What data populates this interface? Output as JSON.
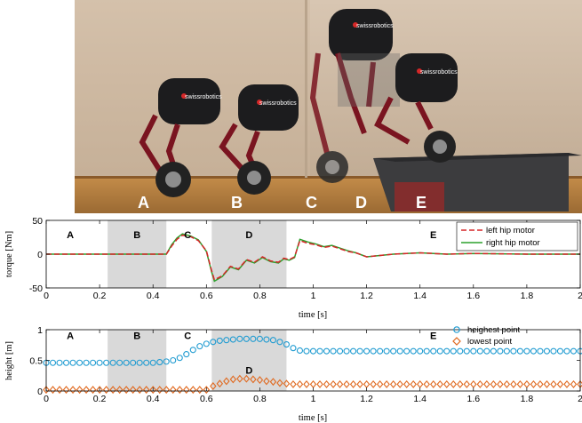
{
  "photo": {
    "phase_labels": [
      "A",
      "B",
      "C",
      "D",
      "E"
    ],
    "robot_logo": "swissrobotics",
    "colors": {
      "wall": "#c9b29a",
      "floor": "#b07a3c",
      "robot": "#1c1c1e",
      "frame": "#7a1420",
      "box": "#3a3a3a"
    }
  },
  "chart_data": [
    {
      "type": "line",
      "ylabel": "torque [Nm]",
      "xlabel": "time [s]",
      "xlim": [
        0,
        2
      ],
      "ylim": [
        -50,
        50
      ],
      "xticks": [
        0,
        0.2,
        0.4,
        0.6,
        0.8,
        1,
        1.2,
        1.4,
        1.6,
        1.8,
        2
      ],
      "yticks": [
        -50,
        0,
        50
      ],
      "phases": [
        {
          "label": "A",
          "x": 0.09
        },
        {
          "label": "B",
          "x": 0.34,
          "shade": [
            0.23,
            0.45
          ]
        },
        {
          "label": "C",
          "x": 0.53
        },
        {
          "label": "D",
          "x": 0.76,
          "shade": [
            0.62,
            0.9
          ]
        },
        {
          "label": "E",
          "x": 1.45
        }
      ],
      "legend": "top-right",
      "series": [
        {
          "name": "left hip motor",
          "color": "#d62728",
          "style": "dashed",
          "x": [
            0,
            0.45,
            0.47,
            0.49,
            0.51,
            0.54,
            0.57,
            0.6,
            0.62,
            0.63,
            0.66,
            0.69,
            0.72,
            0.75,
            0.78,
            0.81,
            0.84,
            0.87,
            0.89,
            0.91,
            0.93,
            0.95,
            0.98,
            1.01,
            1.04,
            1.07,
            1.1,
            1.13,
            1.16,
            1.2,
            1.25,
            1.3,
            1.4,
            1.5,
            1.6,
            1.8,
            2.0
          ],
          "y": [
            0,
            0,
            12,
            22,
            28,
            26,
            20,
            5,
            -25,
            -38,
            -32,
            -18,
            -22,
            -8,
            -12,
            -4,
            -10,
            -12,
            -6,
            -8,
            -4,
            20,
            16,
            14,
            10,
            12,
            8,
            4,
            2,
            -4,
            -2,
            0,
            2,
            0,
            1,
            0,
            0
          ]
        },
        {
          "name": "right hip motor",
          "color": "#2ca02c",
          "style": "solid",
          "x": [
            0,
            0.45,
            0.47,
            0.49,
            0.51,
            0.54,
            0.57,
            0.6,
            0.62,
            0.63,
            0.66,
            0.69,
            0.72,
            0.75,
            0.78,
            0.81,
            0.84,
            0.87,
            0.89,
            0.91,
            0.93,
            0.95,
            0.98,
            1.01,
            1.04,
            1.07,
            1.1,
            1.13,
            1.16,
            1.2,
            1.25,
            1.3,
            1.4,
            1.5,
            1.6,
            1.8,
            2.0
          ],
          "y": [
            0,
            0,
            14,
            24,
            30,
            27,
            21,
            4,
            -27,
            -40,
            -33,
            -19,
            -23,
            -9,
            -13,
            -5,
            -11,
            -13,
            -7,
            -9,
            -5,
            22,
            18,
            15,
            11,
            13,
            9,
            5,
            2,
            -4,
            -2,
            0,
            2,
            0,
            1,
            0,
            0
          ]
        }
      ]
    },
    {
      "type": "scatter",
      "ylabel": "height [m]",
      "xlabel": "time [s]",
      "xlim": [
        0,
        2
      ],
      "ylim": [
        0,
        1
      ],
      "xticks": [
        0,
        0.2,
        0.4,
        0.6,
        0.8,
        1,
        1.2,
        1.4,
        1.6,
        1.8,
        2
      ],
      "yticks": [
        0,
        0.5,
        1
      ],
      "phases": [
        {
          "label": "A",
          "x": 0.09,
          "y": 0.85
        },
        {
          "label": "B",
          "x": 0.34,
          "y": 0.85,
          "shade": [
            0.23,
            0.45
          ]
        },
        {
          "label": "C",
          "x": 0.53,
          "y": 0.85
        },
        {
          "label": "D",
          "x": 0.76,
          "y": 0.28,
          "shade": [
            0.62,
            0.9
          ]
        },
        {
          "label": "E",
          "x": 1.45,
          "y": 0.85
        }
      ],
      "legend": "top-right",
      "series": [
        {
          "name": "heighest point",
          "color": "#1f9bd1",
          "marker": "circle",
          "x": [
            0,
            0.025,
            0.05,
            0.075,
            0.1,
            0.125,
            0.15,
            0.175,
            0.2,
            0.225,
            0.25,
            0.275,
            0.3,
            0.325,
            0.35,
            0.375,
            0.4,
            0.425,
            0.45,
            0.475,
            0.5,
            0.525,
            0.55,
            0.575,
            0.6,
            0.625,
            0.65,
            0.675,
            0.7,
            0.725,
            0.75,
            0.775,
            0.8,
            0.825,
            0.85,
            0.875,
            0.9,
            0.925,
            0.95,
            0.975,
            1.0,
            1.025,
            1.05,
            1.075,
            1.1,
            1.125,
            1.15,
            1.175,
            1.2,
            1.225,
            1.25,
            1.275,
            1.3,
            1.325,
            1.35,
            1.375,
            1.4,
            1.425,
            1.45,
            1.475,
            1.5,
            1.525,
            1.55,
            1.575,
            1.6,
            1.625,
            1.65,
            1.675,
            1.7,
            1.725,
            1.75,
            1.775,
            1.8,
            1.825,
            1.85,
            1.875,
            1.9,
            1.925,
            1.95,
            1.975,
            2.0
          ],
          "y": [
            0.46,
            0.46,
            0.46,
            0.46,
            0.46,
            0.46,
            0.46,
            0.46,
            0.46,
            0.46,
            0.46,
            0.46,
            0.46,
            0.46,
            0.46,
            0.46,
            0.46,
            0.47,
            0.48,
            0.5,
            0.54,
            0.6,
            0.67,
            0.73,
            0.77,
            0.8,
            0.82,
            0.83,
            0.84,
            0.85,
            0.85,
            0.85,
            0.85,
            0.84,
            0.83,
            0.8,
            0.76,
            0.7,
            0.66,
            0.65,
            0.65,
            0.65,
            0.65,
            0.65,
            0.65,
            0.65,
            0.65,
            0.65,
            0.65,
            0.65,
            0.65,
            0.65,
            0.65,
            0.65,
            0.65,
            0.65,
            0.65,
            0.65,
            0.65,
            0.65,
            0.65,
            0.65,
            0.65,
            0.65,
            0.65,
            0.65,
            0.65,
            0.65,
            0.65,
            0.65,
            0.65,
            0.65,
            0.65,
            0.65,
            0.65,
            0.65,
            0.65,
            0.65,
            0.65,
            0.65,
            0.65
          ]
        },
        {
          "name": "lowest point",
          "color": "#e0691f",
          "marker": "diamond",
          "x": [
            0,
            0.025,
            0.05,
            0.075,
            0.1,
            0.125,
            0.15,
            0.175,
            0.2,
            0.225,
            0.25,
            0.275,
            0.3,
            0.325,
            0.35,
            0.375,
            0.4,
            0.425,
            0.45,
            0.475,
            0.5,
            0.525,
            0.55,
            0.575,
            0.6,
            0.625,
            0.65,
            0.675,
            0.7,
            0.725,
            0.75,
            0.775,
            0.8,
            0.825,
            0.85,
            0.875,
            0.9,
            0.925,
            0.95,
            0.975,
            1.0,
            1.025,
            1.05,
            1.075,
            1.1,
            1.125,
            1.15,
            1.175,
            1.2,
            1.225,
            1.25,
            1.275,
            1.3,
            1.325,
            1.35,
            1.375,
            1.4,
            1.425,
            1.45,
            1.475,
            1.5,
            1.525,
            1.55,
            1.575,
            1.6,
            1.625,
            1.65,
            1.675,
            1.7,
            1.725,
            1.75,
            1.775,
            1.8,
            1.825,
            1.85,
            1.875,
            1.9,
            1.925,
            1.95,
            1.975,
            2.0
          ],
          "y": [
            0.02,
            0.02,
            0.02,
            0.02,
            0.02,
            0.02,
            0.02,
            0.02,
            0.02,
            0.02,
            0.02,
            0.02,
            0.02,
            0.02,
            0.02,
            0.02,
            0.02,
            0.02,
            0.02,
            0.02,
            0.02,
            0.02,
            0.02,
            0.02,
            0.02,
            0.08,
            0.12,
            0.16,
            0.19,
            0.2,
            0.2,
            0.19,
            0.18,
            0.16,
            0.15,
            0.13,
            0.12,
            0.11,
            0.11,
            0.11,
            0.11,
            0.11,
            0.11,
            0.11,
            0.11,
            0.11,
            0.11,
            0.11,
            0.11,
            0.11,
            0.11,
            0.11,
            0.11,
            0.11,
            0.11,
            0.11,
            0.11,
            0.11,
            0.11,
            0.11,
            0.11,
            0.11,
            0.11,
            0.11,
            0.11,
            0.11,
            0.11,
            0.11,
            0.11,
            0.11,
            0.11,
            0.11,
            0.11,
            0.11,
            0.11,
            0.11,
            0.11,
            0.11,
            0.11,
            0.11,
            0.11
          ]
        }
      ]
    }
  ]
}
